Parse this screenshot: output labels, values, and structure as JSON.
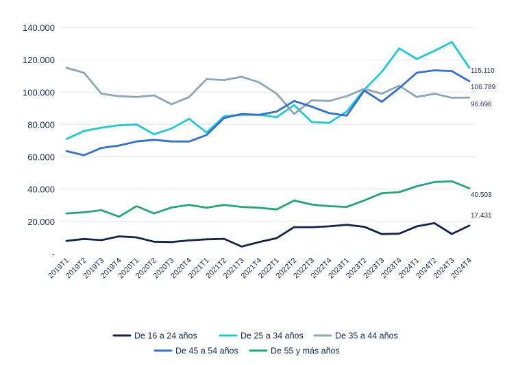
{
  "chart_data": {
    "type": "line",
    "title": "",
    "xlabel": "",
    "ylabel": "",
    "ylim": [
      0,
      140000
    ],
    "y_ticks": [
      "-",
      "20.000",
      "40.000",
      "60.000",
      "80.000",
      "100.000",
      "120.000",
      "140.000"
    ],
    "y_tick_values": [
      0,
      20000,
      40000,
      60000,
      80000,
      100000,
      120000,
      140000
    ],
    "grid": "horizontal",
    "legend_position": "bottom",
    "categories": [
      "2019T1",
      "2019T2",
      "2019T3",
      "2019T4",
      "2020T1",
      "2020T2",
      "2020T3",
      "2020T4",
      "2021T1",
      "2021T2",
      "2021T3",
      "2021T4",
      "2022T1",
      "2022T2",
      "2022T3",
      "2022T4",
      "2023T1",
      "2023T2",
      "2023T3",
      "2023T4",
      "2024T1",
      "2024T2",
      "2024T3",
      "2024T4"
    ],
    "series": [
      {
        "name": "De 16 a 24 años",
        "color": "#14214a",
        "values": [
          8000,
          9200,
          8500,
          10800,
          10200,
          7500,
          7300,
          8300,
          9000,
          9300,
          4500,
          7300,
          9700,
          16500,
          16500,
          17000,
          18000,
          16700,
          12200,
          12500,
          17000,
          19000,
          12300,
          17431
        ],
        "end_label": "17.431"
      },
      {
        "name": "De 25 a 34 años",
        "color": "#1ec8d6",
        "values": [
          71000,
          76000,
          78000,
          79500,
          80000,
          74000,
          77500,
          83500,
          75000,
          85000,
          86000,
          86000,
          84500,
          92000,
          81500,
          81000,
          88000,
          101500,
          112500,
          127000,
          120500,
          125500,
          131000,
          115110
        ],
        "end_label": "115.110"
      },
      {
        "name": "De 35 a 44 años",
        "color": "#8ca6b4",
        "values": [
          115000,
          112000,
          99000,
          97500,
          97000,
          98000,
          92500,
          97000,
          108000,
          107500,
          109500,
          106000,
          99000,
          86500,
          95000,
          94500,
          97500,
          102000,
          99000,
          104000,
          97000,
          99000,
          96500,
          96696
        ],
        "end_label": "96.696"
      },
      {
        "name": "De 45 a 54 años",
        "color": "#2f6fd6",
        "values": [
          63500,
          61000,
          65500,
          67000,
          69500,
          70500,
          69500,
          69500,
          73500,
          84000,
          86500,
          86000,
          88000,
          94500,
          91000,
          87000,
          85500,
          101000,
          94000,
          102500,
          112000,
          113500,
          113000,
          106789
        ],
        "end_label": "106.789"
      },
      {
        "name": "De 55 y más años",
        "color": "#1fa67a",
        "values": [
          25000,
          25700,
          27000,
          23000,
          29500,
          25000,
          28700,
          30300,
          28500,
          30300,
          29000,
          28500,
          27500,
          33000,
          30500,
          29500,
          29000,
          33000,
          37500,
          38200,
          41800,
          44400,
          44900,
          40503
        ],
        "end_label": "40.503"
      }
    ]
  }
}
